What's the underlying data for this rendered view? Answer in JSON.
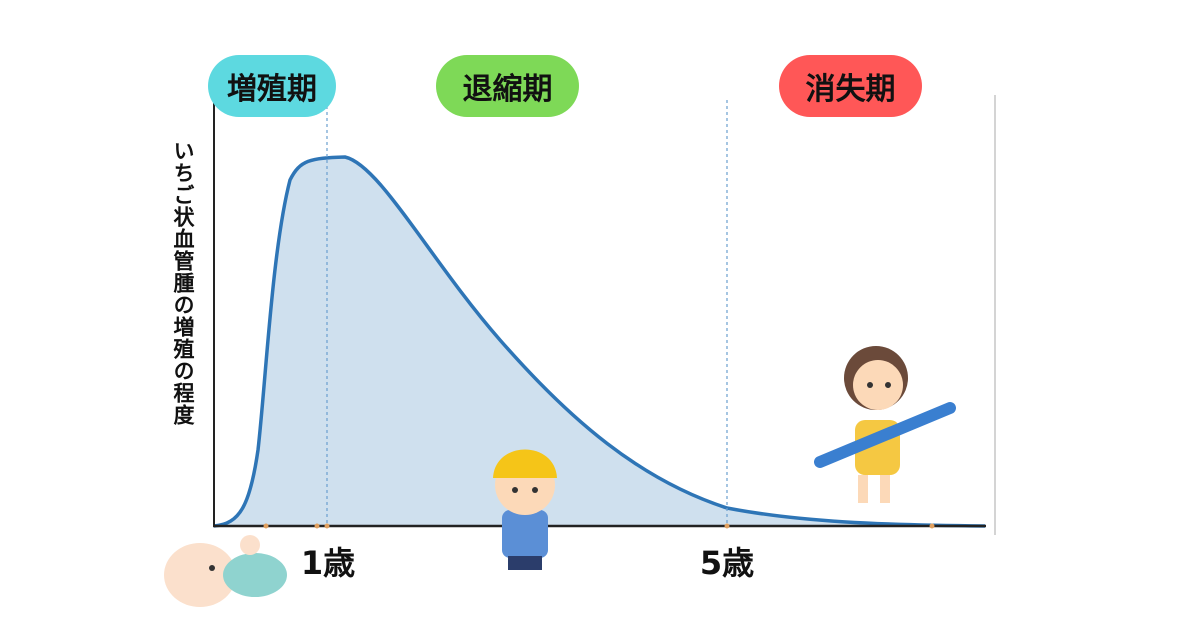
{
  "phases": [
    {
      "label": "増殖期"
    },
    {
      "label": "退縮期"
    },
    {
      "label": "消失期"
    }
  ],
  "y_axis_label": "いちご状血管腫の増殖の程度",
  "x_labels": [
    "1歳",
    "5歳"
  ]
}
